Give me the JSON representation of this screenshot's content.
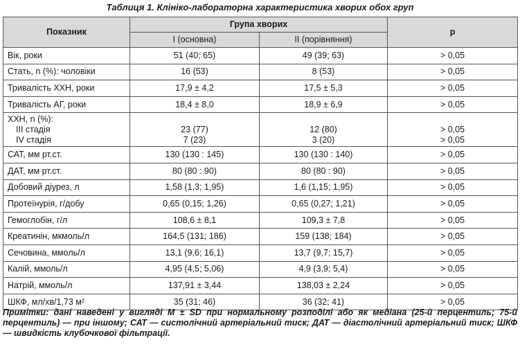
{
  "title": "Таблиця 1. Клініко-лабораторна характеристика хворих обох груп",
  "table": {
    "header": {
      "indicator": "Показник",
      "group": "Група хворих",
      "group1": "I (основна)",
      "group2": "II (порівняння)",
      "p": "p"
    },
    "rows": [
      [
        "Вік, роки",
        "51 (40; 65)",
        "49 (39; 63)",
        "> 0,05"
      ],
      [
        "Стать, n (%): чоловіки",
        "16 (53)",
        "8 (53)",
        "> 0,05"
      ],
      [
        "Тривалість ХХН, роки",
        "17,9 ± 4,2",
        "17,5 ± 5,3",
        "> 0,05"
      ],
      [
        "Тривалість АГ, роки",
        "18,4 ± 8,0",
        "18,9 ± 6,9",
        "> 0,05"
      ],
      [
        [
          "ХХН, n (%):",
          "III стадія",
          "IV стадія"
        ],
        [
          "23 (77)",
          "7 (23)"
        ],
        [
          "12 (80)",
          "3 (20)"
        ],
        [
          "> 0,05",
          "> 0,05"
        ]
      ],
      [
        "САТ, мм рт.ст.",
        "130 (130 : 145)",
        "130 (130 : 140)",
        "> 0,05"
      ],
      [
        "ДАТ, мм рт.ст.",
        "80 (80 : 90)",
        "80 (80 : 90)",
        "> 0,05"
      ],
      [
        "Добовий діурез, л",
        "1,58 (1,3; 1,95)",
        "1,6 (1,15; 1,95)",
        "> 0,05"
      ],
      [
        "Протеїнурія, г/добу",
        "0,65 (0,15; 1,26)",
        "0,65 (0,27; 1,21)",
        "> 0,05"
      ],
      [
        "Гемоглобін, г/л",
        "108,6 ± 8,1",
        "109,3 ± 7,8",
        "> 0,05"
      ],
      [
        "Креатинін, мкмоль/л",
        "164,5 (131; 186)",
        "159 (138; 184)",
        "> 0,05"
      ],
      [
        "Сечовина, ммоль/л",
        "13,1 (9,6; 16,1)",
        "13,7 (9,7; 15,7)",
        "> 0,05"
      ],
      [
        "Калій, ммоль/л",
        "4,95 (4,5; 5,06)",
        "4,9 (3,9; 5,4)",
        "> 0,05"
      ],
      [
        "Натрій, ммоль/л",
        "137,91 ± 3,44",
        "138,03 ± 2,24",
        "> 0,05"
      ],
      [
        "ШКФ, мл/хв/1,73 м²",
        "35 (31; 46)",
        "36 (32; 41)",
        "> 0,05"
      ]
    ]
  },
  "note": "Примітки: дані наведені у вигляді M ± SD при нормальному розподілі або як медіана (25-й перцентиль; 75-й перцентиль) — при іншому; САТ — систолічний артеріальний тиск; ДАТ — діастолічний артеріальний тиск; ШКФ — швидкість клубочкової фільтрації."
}
